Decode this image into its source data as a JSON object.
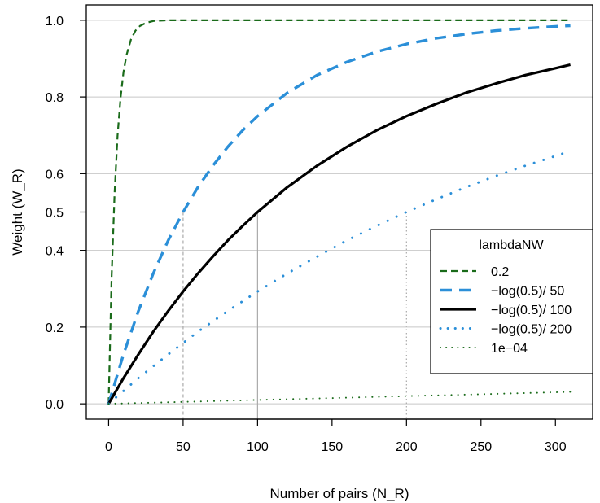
{
  "chart_data": {
    "type": "line",
    "xlabel": "Number of pairs (N_R)",
    "ylabel": "Weight (W_R)",
    "xlim": [
      -15,
      325
    ],
    "ylim": [
      -0.04,
      1.04
    ],
    "xticks": [
      0,
      50,
      100,
      150,
      200,
      250,
      300
    ],
    "xtick_labels": [
      "0",
      "50",
      "100",
      "150",
      "200",
      "250",
      "300"
    ],
    "yticks": [
      0.0,
      0.2,
      0.4,
      0.5,
      0.6,
      0.8,
      1.0
    ],
    "ytick_labels": [
      "0.0",
      "0.2",
      "0.4",
      "0.5",
      "0.6",
      "0.8",
      "1.0"
    ],
    "grid": "horizontal lines at y ticks",
    "reference_lines": [
      {
        "x": 50,
        "y": 0.5,
        "style": "dashed"
      },
      {
        "x": 100,
        "y": 0.5,
        "style": "solid"
      },
      {
        "x": 200,
        "y": 0.5,
        "style": "dotted"
      }
    ],
    "legend": {
      "title": "lambdaNW",
      "position": "right",
      "entries": [
        "0.2",
        "−log(0.5)/ 50",
        "−log(0.5)/ 100",
        "−log(0.5)/ 200",
        "1e−04"
      ]
    },
    "series": [
      {
        "name": "0.2",
        "color": "#1a6b1a",
        "style": "dashed",
        "width": 2.2,
        "x": [
          0,
          2,
          4,
          6,
          8,
          10,
          12,
          15,
          18,
          21,
          25,
          30,
          40,
          60,
          100,
          200,
          310
        ],
        "y": [
          0,
          0.33,
          0.551,
          0.699,
          0.798,
          0.865,
          0.909,
          0.95,
          0.973,
          0.985,
          0.993,
          0.998,
          1.0,
          1.0,
          1.0,
          1.0,
          1.0
        ]
      },
      {
        "name": "−log(0.5)/ 50",
        "color": "#2b8fd8",
        "style": "dashed",
        "width": 3.4,
        "x": [
          0,
          10,
          20,
          30,
          40,
          50,
          60,
          70,
          80,
          90,
          100,
          120,
          140,
          160,
          180,
          200,
          220,
          240,
          260,
          280,
          300,
          310
        ],
        "y": [
          0,
          0.129,
          0.242,
          0.34,
          0.426,
          0.5,
          0.565,
          0.621,
          0.67,
          0.713,
          0.75,
          0.811,
          0.857,
          0.891,
          0.918,
          0.938,
          0.953,
          0.964,
          0.973,
          0.979,
          0.984,
          0.986
        ]
      },
      {
        "name": "−log(0.5)/ 100",
        "color": "#000000",
        "style": "solid",
        "width": 3.2,
        "x": [
          0,
          10,
          20,
          30,
          40,
          50,
          60,
          70,
          80,
          90,
          100,
          120,
          140,
          160,
          180,
          200,
          220,
          240,
          260,
          280,
          300,
          310
        ],
        "y": [
          0,
          0.067,
          0.129,
          0.188,
          0.242,
          0.293,
          0.34,
          0.384,
          0.426,
          0.464,
          0.5,
          0.565,
          0.621,
          0.67,
          0.713,
          0.75,
          0.782,
          0.811,
          0.835,
          0.857,
          0.875,
          0.884
        ]
      },
      {
        "name": "−log(0.5)/ 200",
        "color": "#2b8fd8",
        "style": "dotted",
        "width": 3,
        "x": [
          0,
          20,
          40,
          60,
          80,
          100,
          120,
          140,
          160,
          180,
          200,
          220,
          240,
          260,
          280,
          300,
          310
        ],
        "y": [
          0,
          0.067,
          0.129,
          0.188,
          0.242,
          0.293,
          0.34,
          0.384,
          0.426,
          0.464,
          0.5,
          0.533,
          0.565,
          0.594,
          0.621,
          0.646,
          0.659
        ]
      },
      {
        "name": "1e−04",
        "color": "#1a6b1a",
        "style": "dotted",
        "width": 2,
        "x": [
          0,
          50,
          100,
          150,
          200,
          250,
          310
        ],
        "y": [
          0,
          0.005,
          0.01,
          0.015,
          0.02,
          0.025,
          0.031
        ]
      }
    ]
  }
}
